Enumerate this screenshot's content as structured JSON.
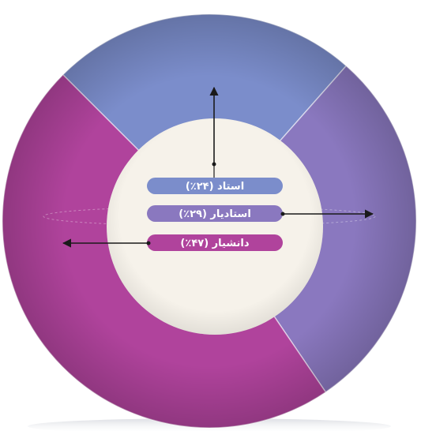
{
  "chart_data": {
    "type": "pie",
    "style": "donut",
    "categories": [
      "استاد",
      "استادیار",
      "دانشیار"
    ],
    "values": [
      24,
      29,
      47
    ],
    "labels": [
      "استاد (۲۴٪)",
      "استادیار (۲۹٪)",
      "دانشیار (۴۷٪)"
    ],
    "colors": [
      "#7b8dcb",
      "#8a78bf",
      "#b0439c"
    ],
    "center_color": "#f6f2ea",
    "arrow_color": "#1a1a1a"
  }
}
